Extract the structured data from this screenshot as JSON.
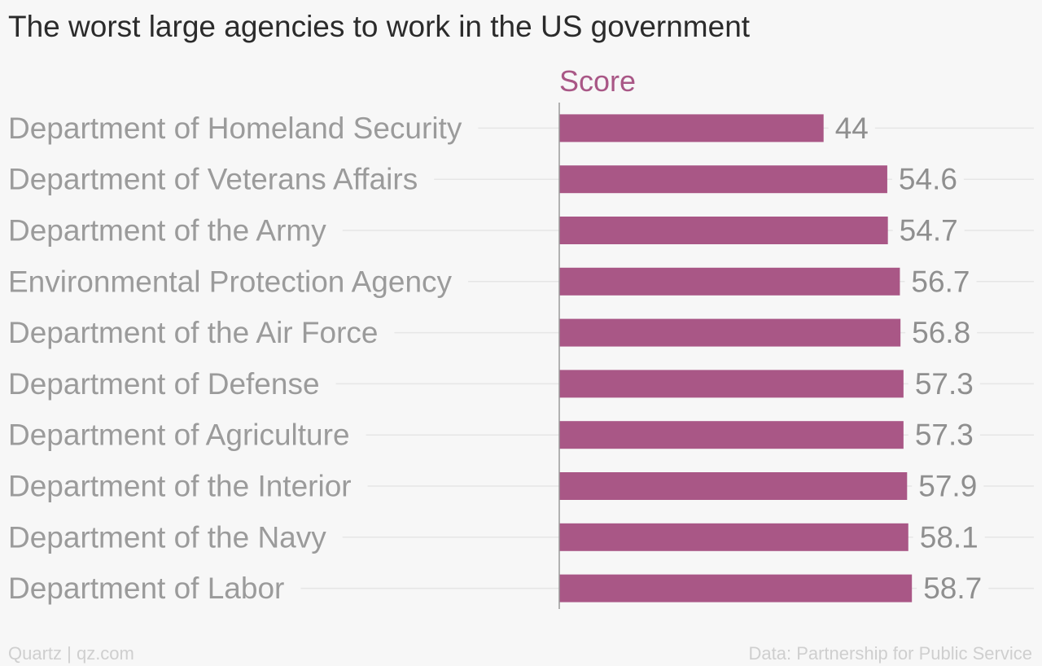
{
  "chart_data": {
    "type": "bar",
    "orientation": "horizontal",
    "title": "The worst large agencies to work in the US government",
    "series": [
      {
        "name": "Score",
        "color": "#a95786"
      }
    ],
    "categories": [
      "Department of Homeland Security",
      "Department of Veterans Affairs",
      "Department of the Army",
      "Environmental Protection Agency",
      "Department of the Air Force",
      "Department of Defense",
      "Department of Agriculture",
      "Department of the Interior",
      "Department of the Navy",
      "Department of Labor"
    ],
    "values": [
      44,
      54.6,
      54.7,
      56.7,
      56.8,
      57.3,
      57.3,
      57.9,
      58.1,
      58.7
    ],
    "value_labels": [
      "44",
      "54.6",
      "54.7",
      "56.7",
      "56.8",
      "57.3",
      "57.3",
      "57.9",
      "58.1",
      "58.7"
    ],
    "xlim": [
      0,
      79
    ],
    "grid": true,
    "legend": "top"
  },
  "footer": {
    "left": "Quartz | qz.com",
    "right": "Data: Partnership for Public Service"
  },
  "colors": {
    "bar": "#a95786",
    "category_text": "#9b9b9b",
    "value_text": "#8f8f8f",
    "gridline": "#e6e6e6",
    "axis": "#9a9a9a"
  }
}
